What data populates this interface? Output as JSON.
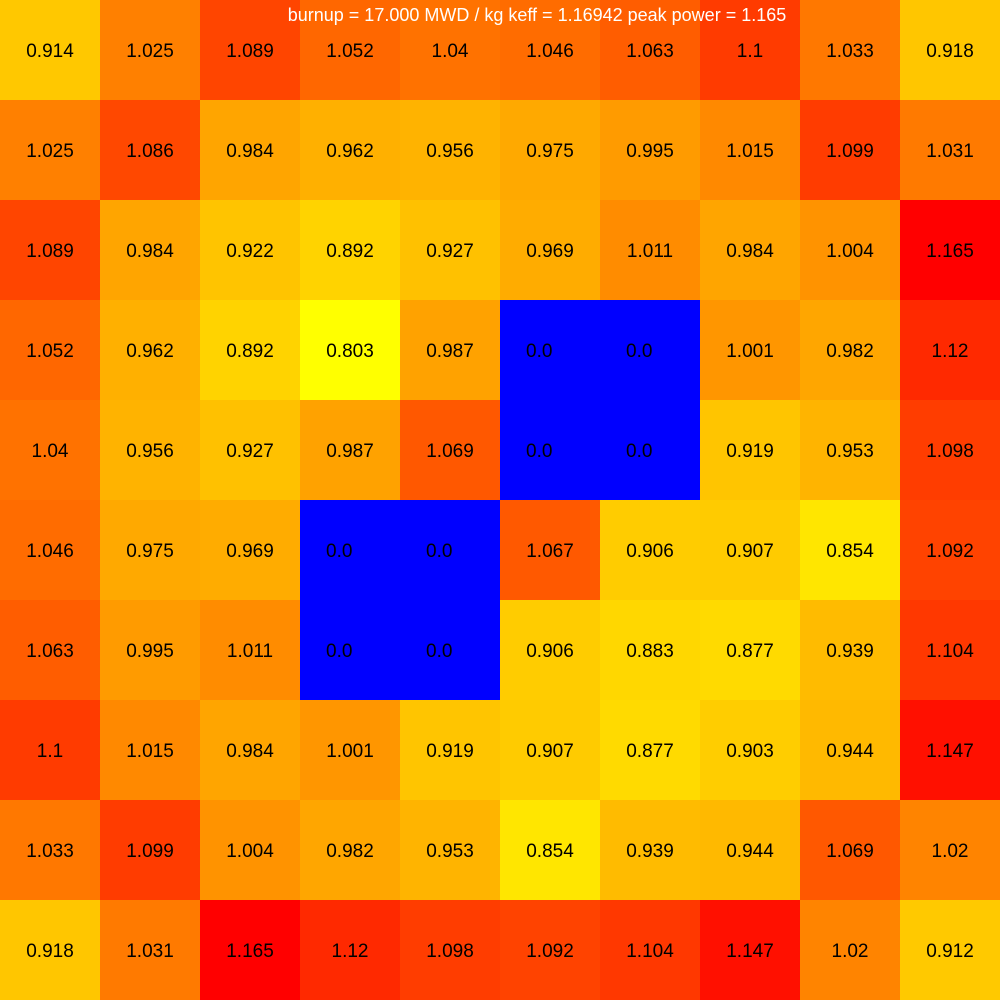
{
  "chart_data": {
    "type": "heatmap",
    "title": "burnup = 17.000 MWD / kg  keff = 1.16942  peak power = 1.165",
    "rows": [
      [
        "0.914",
        "1.025",
        "1.089",
        "1.052",
        "1.04",
        "1.046",
        "1.063",
        "1.1",
        "1.033",
        "0.918"
      ],
      [
        "1.025",
        "1.086",
        "0.984",
        "0.962",
        "0.956",
        "0.975",
        "0.995",
        "1.015",
        "1.099",
        "1.031"
      ],
      [
        "1.089",
        "0.984",
        "0.922",
        "0.892",
        "0.927",
        "0.969",
        "1.011",
        "0.984",
        "1.004",
        "1.165"
      ],
      [
        "1.052",
        "0.962",
        "0.892",
        "0.803",
        "0.987",
        "0.0",
        "0.0",
        "1.001",
        "0.982",
        "1.12"
      ],
      [
        "1.04",
        "0.956",
        "0.927",
        "0.987",
        "1.069",
        "0.0",
        "0.0",
        "0.919",
        "0.953",
        "1.098"
      ],
      [
        "1.046",
        "0.975",
        "0.969",
        "0.0",
        "0.0",
        "1.067",
        "0.906",
        "0.907",
        "0.854",
        "1.092"
      ],
      [
        "1.063",
        "0.995",
        "1.011",
        "0.0",
        "0.0",
        "0.906",
        "0.883",
        "0.877",
        "0.939",
        "1.104"
      ],
      [
        "1.1",
        "1.015",
        "0.984",
        "1.001",
        "0.919",
        "0.907",
        "0.877",
        "0.903",
        "0.944",
        "1.147"
      ],
      [
        "1.033",
        "1.099",
        "1.004",
        "0.982",
        "0.953",
        "0.854",
        "0.939",
        "0.944",
        "1.069",
        "1.02"
      ],
      [
        "0.918",
        "1.031",
        "1.165",
        "1.12",
        "1.098",
        "1.092",
        "1.104",
        "1.147",
        "1.02",
        "0.912"
      ]
    ],
    "zero_color": "#0000ff",
    "colormap": [
      "#ffff00",
      "#ffa500",
      "#ff0000"
    ],
    "value_range": [
      0.803,
      1.165
    ]
  }
}
